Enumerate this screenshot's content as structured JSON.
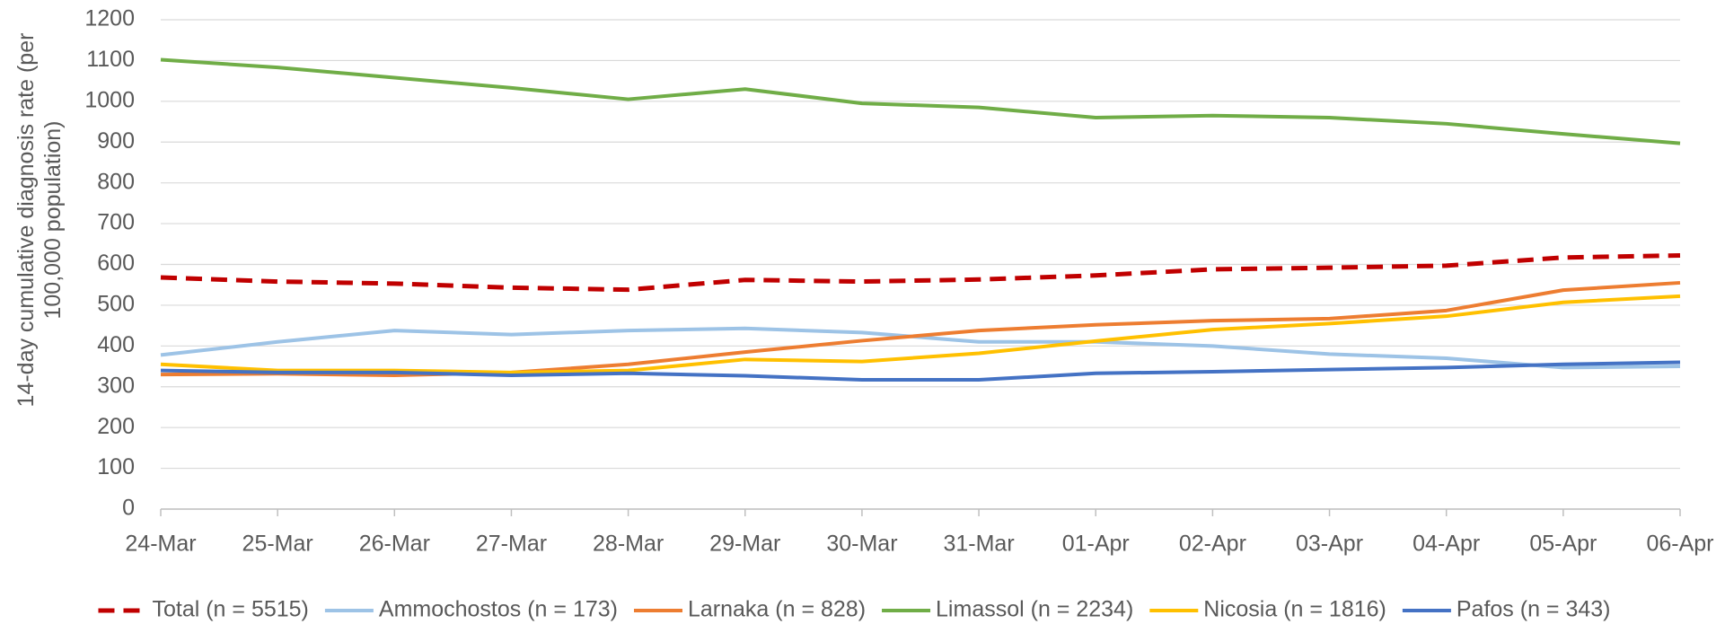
{
  "chart_data": {
    "type": "line",
    "y_label": "14-day cumulative diagnosis rate (per 100,000 population)",
    "categories": [
      "24-Mar",
      "25-Mar",
      "26-Mar",
      "27-Mar",
      "28-Mar",
      "29-Mar",
      "30-Mar",
      "31-Mar",
      "01-Apr",
      "02-Apr",
      "03-Apr",
      "04-Apr",
      "05-Apr",
      "06-Apr"
    ],
    "series": [
      {
        "name": "Total (n = 5515)",
        "color": "#c00000",
        "linestyle": "dashed",
        "values": [
          568,
          558,
          553,
          543,
          538,
          562,
          558,
          563,
          573,
          588,
          592,
          597,
          617,
          622
        ]
      },
      {
        "name": "Ammochostos (n = 173)",
        "color": "#9dc3e6",
        "linestyle": "solid",
        "values": [
          378,
          410,
          438,
          428,
          438,
          443,
          433,
          410,
          410,
          400,
          380,
          370,
          347,
          350
        ]
      },
      {
        "name": "Larnaka (n = 828)",
        "color": "#ed7d31",
        "linestyle": "solid",
        "values": [
          330,
          332,
          328,
          335,
          355,
          385,
          413,
          438,
          452,
          462,
          467,
          487,
          537,
          555
        ]
      },
      {
        "name": "Limassol (n = 2234)",
        "color": "#70ad47",
        "linestyle": "solid",
        "values": [
          1102,
          1083,
          1058,
          1033,
          1005,
          1030,
          995,
          985,
          960,
          965,
          960,
          945,
          920,
          897
        ]
      },
      {
        "name": "Nicosia (n = 1816)",
        "color": "#ffc000",
        "linestyle": "solid",
        "values": [
          355,
          340,
          340,
          335,
          340,
          367,
          362,
          382,
          412,
          440,
          455,
          473,
          507,
          522
        ]
      },
      {
        "name": "Pafos (n = 343)",
        "color": "#4472c4",
        "linestyle": "solid",
        "values": [
          340,
          335,
          335,
          328,
          333,
          327,
          317,
          317,
          333,
          337,
          342,
          347,
          355,
          360
        ]
      }
    ],
    "ylim": [
      0,
      1200
    ],
    "yticks": [
      0,
      100,
      200,
      300,
      400,
      500,
      600,
      700,
      800,
      900,
      1000,
      1100,
      1200
    ],
    "grid": true,
    "legend": "bottom"
  }
}
